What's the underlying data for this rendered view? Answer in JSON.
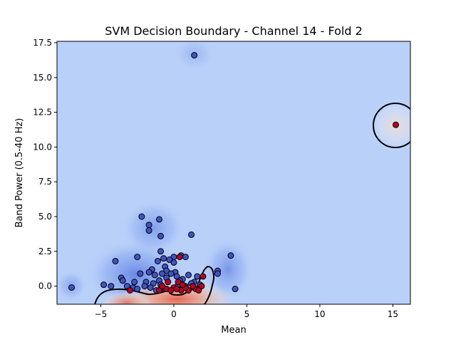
{
  "chart_data": {
    "type": "scatter",
    "title": "SVM Decision Boundary - Channel 14 - Fold 2",
    "xlabel": "Mean",
    "ylabel": "Band Power (0.5-40 Hz)",
    "xlim": [
      -8.0,
      16.2
    ],
    "ylim": [
      -1.3,
      17.6
    ],
    "xticks": [
      -5,
      0,
      5,
      10,
      15
    ],
    "xtick_labels": [
      "−5",
      "0",
      "5",
      "10",
      "15"
    ],
    "yticks": [
      0.0,
      2.5,
      5.0,
      7.5,
      10.0,
      12.5,
      15.0,
      17.5
    ],
    "ytick_labels": [
      "0.0",
      "2.5",
      "5.0",
      "7.5",
      "10.0",
      "12.5",
      "15.0",
      "17.5"
    ],
    "grid": false,
    "background_color": "#b9d0f9",
    "class_colors": {
      "class_0": "#3f53c3",
      "class_1": "#b40426"
    },
    "series": [
      {
        "class": 0,
        "color": "#3f53c3",
        "points": [
          [
            1.4,
            16.6
          ],
          [
            -7.0,
            -0.1
          ],
          [
            -4.0,
            1.8
          ],
          [
            -2.2,
            5.0
          ],
          [
            -1.7,
            4.4
          ],
          [
            -1.7,
            4.0
          ],
          [
            -1.0,
            4.8
          ],
          [
            -0.9,
            3.6
          ],
          [
            1.2,
            3.7
          ],
          [
            -0.9,
            2.5
          ],
          [
            -2.5,
            2.1
          ],
          [
            0.0,
            2.1
          ],
          [
            0.5,
            2.2
          ],
          [
            0.8,
            2.1
          ],
          [
            -0.7,
            2.0
          ],
          [
            -0.3,
            1.9
          ],
          [
            0.0,
            1.7
          ],
          [
            -1.1,
            1.8
          ],
          [
            3.9,
            2.2
          ],
          [
            3.0,
            1.1
          ],
          [
            3.0,
            0.9
          ],
          [
            -1.5,
            1.2
          ],
          [
            -1.7,
            1.0
          ],
          [
            -0.6,
            1.4
          ],
          [
            -0.5,
            1.1
          ],
          [
            -2.3,
            0.9
          ],
          [
            -1.3,
            0.8
          ],
          [
            -0.8,
            0.9
          ],
          [
            0.1,
            1.0
          ],
          [
            -3.6,
            0.6
          ],
          [
            -3.5,
            0.4
          ],
          [
            -2.7,
            0.3
          ],
          [
            -4.8,
            0.1
          ],
          [
            -4.3,
            0.0
          ],
          [
            -3.2,
            0.0
          ],
          [
            -2.8,
            -0.1
          ],
          [
            -2.5,
            -0.2
          ],
          [
            -1.9,
            0.3
          ],
          [
            -1.4,
            0.2
          ],
          [
            -1.0,
            0.4
          ],
          [
            -0.5,
            0.6
          ],
          [
            0.2,
            0.7
          ],
          [
            0.6,
            0.5
          ],
          [
            1.0,
            0.8
          ],
          [
            1.4,
            0.3
          ],
          [
            1.6,
            0.7
          ],
          [
            -1.6,
            -0.1
          ],
          [
            -1.2,
            -0.3
          ],
          [
            -0.6,
            -0.2
          ],
          [
            0.3,
            0.1
          ],
          [
            0.8,
            0.0
          ],
          [
            1.2,
            0.2
          ],
          [
            1.8,
            0.1
          ],
          [
            4.2,
            -0.2
          ],
          [
            -0.2,
            0.9
          ],
          [
            0.4,
            0.4
          ],
          [
            -0.9,
            0.1
          ],
          [
            -2.0,
            0.0
          ]
        ]
      },
      {
        "class": 1,
        "color": "#b40426",
        "points": [
          [
            15.2,
            11.6
          ],
          [
            0.4,
            2.1
          ],
          [
            2.0,
            0.7
          ],
          [
            -3.0,
            -0.3
          ],
          [
            -0.4,
            0.3
          ],
          [
            0.3,
            0.3
          ],
          [
            -1.0,
            -0.3
          ],
          [
            -0.5,
            -0.2
          ],
          [
            0.0,
            -0.1
          ],
          [
            0.5,
            -0.3
          ],
          [
            1.0,
            -0.3
          ],
          [
            1.5,
            -0.2
          ],
          [
            1.9,
            0.0
          ],
          [
            -0.2,
            -0.3
          ],
          [
            0.8,
            -0.1
          ],
          [
            1.3,
            0.0
          ],
          [
            -0.8,
            0.0
          ],
          [
            0.2,
            -0.2
          ],
          [
            1.7,
            -0.3
          ],
          [
            0.6,
            0.1
          ]
        ]
      }
    ],
    "decision_boundary": "black contour line"
  }
}
